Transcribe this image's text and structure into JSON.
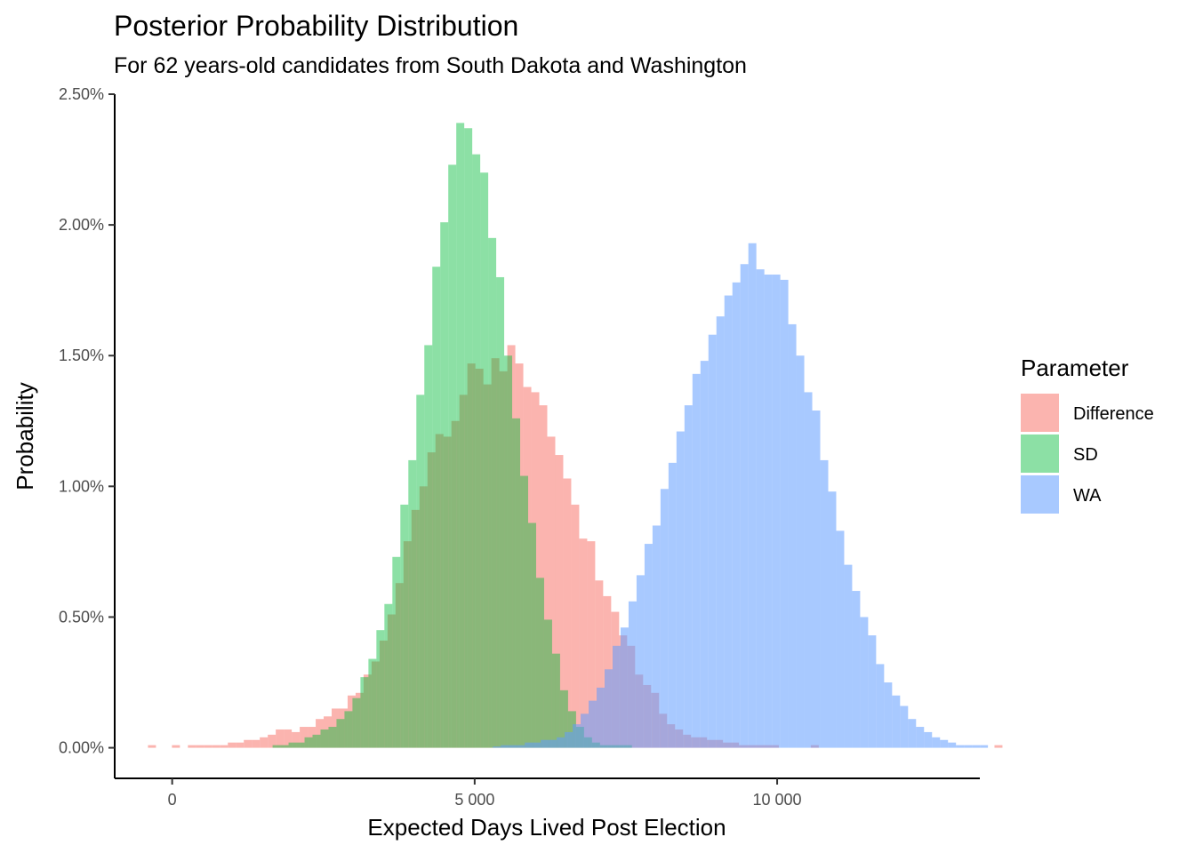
{
  "chart_data": {
    "type": "histogram",
    "title": "Posterior Probability Distribution",
    "subtitle": "For 62 years-old candidates from South Dakota and Washington",
    "xlabel": "Expected Days Lived Post Election",
    "ylabel": "Probability",
    "xlim": [
      -950,
      13350
    ],
    "ylim": [
      -0.00117,
      0.025
    ],
    "x_ticks": [
      0,
      5000,
      10000
    ],
    "x_tick_labels": [
      "0",
      "5 000",
      "10 000"
    ],
    "y_ticks": [
      0,
      0.005,
      0.01,
      0.015,
      0.02,
      0.025
    ],
    "y_tick_labels": [
      "0.00%",
      "0.50%",
      "1.00%",
      "1.50%",
      "2.00%",
      "2.50%"
    ],
    "grid": false,
    "legend": {
      "title": "Parameter",
      "position": "right"
    },
    "bin_width": 132,
    "series": [
      {
        "name": "Difference",
        "color": "#F8766D",
        "opacity": 0.55,
        "bin_start": -400,
        "values": [
          0.0001,
          0,
          0,
          0.0001,
          0,
          0.0001,
          0.0001,
          0.0001,
          0.0001,
          0.0001,
          0.0002,
          0.0002,
          0.0003,
          0.0003,
          0.0004,
          0.0005,
          0.0007,
          0.0007,
          0.0006,
          0.0008,
          0.0008,
          0.0011,
          0.0012,
          0.0015,
          0.0015,
          0.002,
          0.0021,
          0.0028,
          0.0033,
          0.0041,
          0.0051,
          0.0063,
          0.0079,
          0.0091,
          0.01,
          0.0113,
          0.012,
          0.0119,
          0.0125,
          0.0135,
          0.0147,
          0.0145,
          0.0139,
          0.0149,
          0.0144,
          0.0154,
          0.0147,
          0.0138,
          0.0136,
          0.0131,
          0.0119,
          0.0112,
          0.0103,
          0.0093,
          0.008,
          0.0079,
          0.0064,
          0.0058,
          0.0052,
          0.0043,
          0.0039,
          0.0028,
          0.0024,
          0.0021,
          0.0013,
          0.0009,
          0.0007,
          0.0005,
          0.0004,
          0.0004,
          0.0003,
          0.0003,
          0.0002,
          0.0002,
          0.0001,
          0.0001,
          0.0001,
          0.0001,
          0.0001,
          0,
          0,
          0,
          0,
          0.0001,
          0,
          0,
          0,
          0,
          0,
          0,
          0,
          0,
          0,
          0,
          0,
          0,
          0,
          0,
          0,
          0,
          0,
          0,
          0,
          0,
          0,
          0,
          0.0001
        ]
      },
      {
        "name": "SD",
        "color": "#00BA38",
        "opacity": 0.45,
        "bin_start": 1660,
        "values": [
          0.0001,
          0.0001,
          0.0002,
          0.0002,
          0.0004,
          0.0005,
          0.0007,
          0.0008,
          0.0011,
          0.0014,
          0.0019,
          0.0027,
          0.0034,
          0.0045,
          0.0055,
          0.0073,
          0.0093,
          0.011,
          0.0135,
          0.0154,
          0.0184,
          0.0201,
          0.0223,
          0.0239,
          0.0237,
          0.0227,
          0.022,
          0.0195,
          0.018,
          0.015,
          0.0126,
          0.0104,
          0.0086,
          0.0065,
          0.0049,
          0.0036,
          0.0022,
          0.0014,
          0.0008,
          0.0004,
          0.0002,
          0.0001,
          0.0001,
          0.0001,
          0.0001
        ]
      },
      {
        "name": "WA",
        "color": "#619CFF",
        "opacity": 0.55,
        "bin_start": 5300,
        "values": [
          5e-05,
          0.0001,
          0.0001,
          0.0001,
          0.0002,
          0.0002,
          0.0003,
          0.0003,
          0.0004,
          0.0006,
          0.0009,
          0.0013,
          0.0018,
          0.0023,
          0.003,
          0.0039,
          0.0046,
          0.0056,
          0.0066,
          0.0078,
          0.0085,
          0.0099,
          0.0109,
          0.0121,
          0.0131,
          0.0143,
          0.0148,
          0.0158,
          0.0165,
          0.0173,
          0.0178,
          0.0185,
          0.0193,
          0.0183,
          0.0181,
          0.0181,
          0.0179,
          0.0162,
          0.015,
          0.0136,
          0.0129,
          0.011,
          0.0098,
          0.0083,
          0.007,
          0.006,
          0.005,
          0.0043,
          0.0032,
          0.0025,
          0.002,
          0.0016,
          0.0011,
          0.0008,
          0.0006,
          0.0004,
          0.0003,
          0.0002,
          0.0001,
          0.0001,
          0.0001,
          0.0001
        ]
      }
    ]
  }
}
